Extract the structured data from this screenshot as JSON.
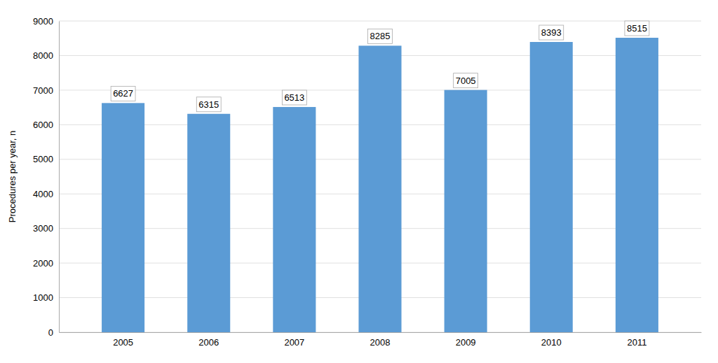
{
  "chart_data": {
    "type": "bar",
    "categories": [
      "2005",
      "2006",
      "2007",
      "2008",
      "2009",
      "2010",
      "2011"
    ],
    "values": [
      6627,
      6315,
      6513,
      8285,
      7005,
      8393,
      8515
    ],
    "color": "#5b9bd5",
    "ylabel": "Procedures per year, n",
    "ylim": [
      0,
      9000
    ],
    "yticks": [
      0,
      1000,
      2000,
      3000,
      4000,
      5000,
      6000,
      7000,
      8000,
      9000
    ],
    "grid": true,
    "data_labels": true
  }
}
